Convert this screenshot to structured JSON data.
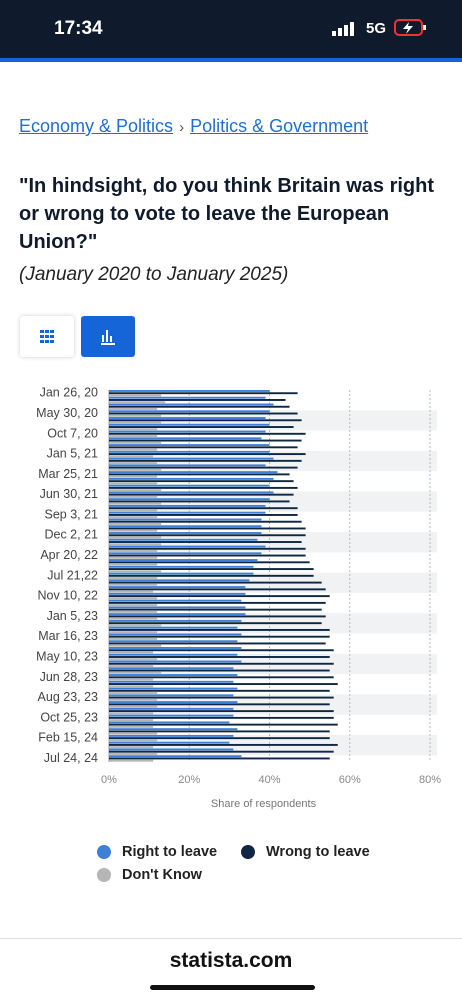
{
  "status": {
    "time": "17:34",
    "network": "5G"
  },
  "breadcrumbs": [
    "Economy & Politics",
    "Politics & Government"
  ],
  "footer": "statista.com",
  "chart_data": {
    "type": "bar",
    "orientation": "horizontal",
    "title": "\"In hindsight, do you think Britain was right or wrong to vote to leave the European Union?\"",
    "subtitle": "(January 2020 to January 2025)",
    "x_label": "Share of respondents",
    "categories": [
      "Jan 26, 20",
      null,
      null,
      "May 30, 20",
      null,
      null,
      "Oct 7, 20",
      null,
      null,
      "Jan 5, 21",
      null,
      null,
      "Mar 25, 21",
      null,
      null,
      "Jun 30, 21",
      null,
      null,
      "Sep 3, 21",
      null,
      null,
      "Dec 2, 21",
      null,
      null,
      "Apr 20, 22",
      null,
      null,
      "Jul 21,22",
      null,
      null,
      "Nov 10, 22",
      null,
      null,
      "Jan 5, 23",
      null,
      null,
      "Mar 16, 23",
      null,
      null,
      "May 10, 23",
      null,
      null,
      "Jun 28, 23",
      null,
      null,
      "Aug 23, 23",
      null,
      null,
      "Oct 25, 23",
      null,
      null,
      "Feb 15, 24",
      null,
      null,
      "Jul 24, 24"
    ],
    "series": [
      {
        "name": "Right to leave",
        "color": "#3f7fd6",
        "values": [
          40,
          39,
          41,
          40,
          39,
          40,
          39,
          38,
          40,
          40,
          41,
          39,
          42,
          41,
          40,
          41,
          40,
          39,
          39,
          38,
          38,
          38,
          37,
          39,
          38,
          37,
          36,
          36,
          35,
          34,
          34,
          33,
          34,
          34,
          33,
          32,
          33,
          32,
          33,
          32,
          33,
          31,
          32,
          31,
          32,
          31,
          32,
          31,
          31,
          30,
          32,
          31,
          30,
          31,
          33
        ]
      },
      {
        "name": "Wrong to leave",
        "color": "#0f2742",
        "values": [
          47,
          44,
          45,
          47,
          48,
          46,
          49,
          48,
          47,
          49,
          48,
          47,
          45,
          46,
          47,
          46,
          45,
          47,
          47,
          48,
          49,
          49,
          48,
          49,
          49,
          50,
          51,
          51,
          53,
          54,
          55,
          54,
          53,
          54,
          53,
          55,
          55,
          54,
          56,
          55,
          56,
          55,
          56,
          57,
          55,
          56,
          55,
          56,
          56,
          57,
          55,
          55,
          57,
          56,
          55
        ]
      },
      {
        "name": "Don't Know",
        "color": "#b5b5b5",
        "values": [
          13,
          14,
          12,
          13,
          13,
          12,
          12,
          13,
          12,
          11,
          12,
          13,
          12,
          12,
          13,
          12,
          13,
          12,
          12,
          13,
          12,
          13,
          13,
          12,
          12,
          12,
          13,
          12,
          12,
          11,
          12,
          12,
          12,
          12,
          13,
          12,
          12,
          13,
          11,
          12,
          11,
          13,
          11,
          11,
          12,
          12,
          12,
          11,
          11,
          11,
          12,
          12,
          11,
          12,
          11
        ]
      }
    ],
    "xlim": [
      0,
      80
    ],
    "xticks": [
      {
        "value": 0,
        "label": "0%"
      },
      {
        "value": 20,
        "label": "20%"
      },
      {
        "value": 40,
        "label": "40%"
      },
      {
        "value": 60,
        "label": "60%"
      },
      {
        "value": 80,
        "label": "80%"
      }
    ],
    "grid": true,
    "legend": "bottom"
  }
}
